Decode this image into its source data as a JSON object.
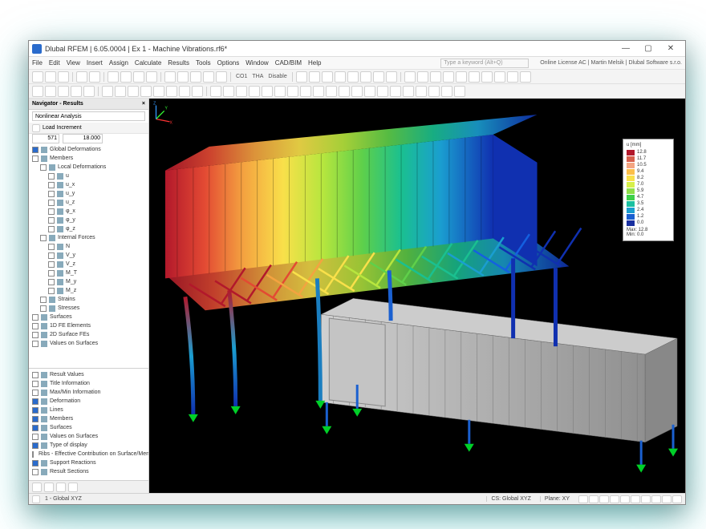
{
  "window": {
    "title": "Dlubal RFEM | 6.05.0004 | Ex 1 - Machine Vibrations.rf6*",
    "min": "—",
    "max": "▢",
    "close": "✕"
  },
  "menu": {
    "items": [
      "File",
      "Edit",
      "View",
      "Insert",
      "Assign",
      "Calculate",
      "Results",
      "Tools",
      "Options",
      "Window",
      "CAD/BIM",
      "Help"
    ],
    "search_placeholder": "Type a keyword (Alt+Q)",
    "license": "Online License AC | Martin Melsik | Dlubal Software s.r.o."
  },
  "toolbar1": {
    "labels": [
      "CO1",
      "THA",
      "Disable"
    ]
  },
  "navigator": {
    "title": "Navigator - Results",
    "combo_analysis": "Nonlinear Analysis",
    "combo_load": "Load Increment",
    "step_idx": "571",
    "step_val": "18.000",
    "tree": [
      {
        "lvl": 1,
        "chk": true,
        "label": "Global Deformations"
      },
      {
        "lvl": 1,
        "chk": false,
        "label": "Members"
      },
      {
        "lvl": 2,
        "chk": false,
        "label": "Local Deformations"
      },
      {
        "lvl": 3,
        "chk": false,
        "label": "u"
      },
      {
        "lvl": 3,
        "chk": false,
        "label": "u_x"
      },
      {
        "lvl": 3,
        "chk": false,
        "label": "u_y"
      },
      {
        "lvl": 3,
        "chk": false,
        "label": "u_z"
      },
      {
        "lvl": 3,
        "chk": false,
        "label": "φ_x"
      },
      {
        "lvl": 3,
        "chk": false,
        "label": "φ_y"
      },
      {
        "lvl": 3,
        "chk": false,
        "label": "φ_z"
      },
      {
        "lvl": 2,
        "chk": false,
        "label": "Internal Forces"
      },
      {
        "lvl": 3,
        "chk": false,
        "label": "N"
      },
      {
        "lvl": 3,
        "chk": false,
        "label": "V_y"
      },
      {
        "lvl": 3,
        "chk": false,
        "label": "V_z"
      },
      {
        "lvl": 3,
        "chk": false,
        "label": "M_T"
      },
      {
        "lvl": 3,
        "chk": false,
        "label": "M_y"
      },
      {
        "lvl": 3,
        "chk": false,
        "label": "M_z"
      },
      {
        "lvl": 2,
        "chk": false,
        "label": "Strains"
      },
      {
        "lvl": 2,
        "chk": false,
        "label": "Stresses"
      },
      {
        "lvl": 1,
        "chk": false,
        "label": "Surfaces"
      },
      {
        "lvl": 1,
        "chk": false,
        "label": "1D FE Elements"
      },
      {
        "lvl": 1,
        "chk": false,
        "label": "2D Surface FEs"
      },
      {
        "lvl": 1,
        "chk": false,
        "label": "Values on Surfaces"
      }
    ],
    "results": [
      {
        "chk": false,
        "label": "Result Values"
      },
      {
        "chk": false,
        "label": "Title Information"
      },
      {
        "chk": false,
        "label": "Max/Min Information"
      },
      {
        "chk": true,
        "label": "Deformation"
      },
      {
        "chk": true,
        "label": "Lines"
      },
      {
        "chk": true,
        "label": "Members"
      },
      {
        "chk": true,
        "label": "Surfaces"
      },
      {
        "chk": false,
        "label": "Values on Surfaces"
      },
      {
        "chk": true,
        "label": "Type of display"
      },
      {
        "chk": true,
        "label": "Ribs - Effective Contribution on Surface/Mem..."
      },
      {
        "chk": true,
        "label": "Support Reactions"
      },
      {
        "chk": false,
        "label": "Result Sections"
      }
    ]
  },
  "legend": {
    "title": "u [mm]",
    "items": [
      {
        "color": "#b2182b",
        "v": "12.8"
      },
      {
        "color": "#d6604d",
        "v": "11.7"
      },
      {
        "color": "#f4a582",
        "v": "10.5"
      },
      {
        "color": "#fcbf49",
        "v": "9.4"
      },
      {
        "color": "#f9e04a",
        "v": "8.2"
      },
      {
        "color": "#d7f04a",
        "v": "7.0"
      },
      {
        "color": "#8fe04a",
        "v": "5.9"
      },
      {
        "color": "#3ed04a",
        "v": "4.7"
      },
      {
        "color": "#1ac0a0",
        "v": "3.5"
      },
      {
        "color": "#1a9ed0",
        "v": "2.4"
      },
      {
        "color": "#1a60d0",
        "v": "1.2"
      },
      {
        "color": "#1a30a0",
        "v": "0.0"
      }
    ],
    "max": "Max: 12.8",
    "min": "Min: 0.0"
  },
  "status": {
    "view": "1 - Global XYZ",
    "cs": "CS: Global XYZ",
    "plane": "Plane: XY"
  },
  "viewport": {
    "bg": "#000000",
    "container_grey": "#b8b8b8",
    "container_grey_dark": "#8a8a8a",
    "support_color": "#00d028",
    "rainbow": [
      "#b2182b",
      "#e34a33",
      "#f4a340",
      "#f9e04a",
      "#b7e63e",
      "#5fd04a",
      "#1ac090",
      "#1a9ed0",
      "#1460e0",
      "#1030b0"
    ]
  }
}
